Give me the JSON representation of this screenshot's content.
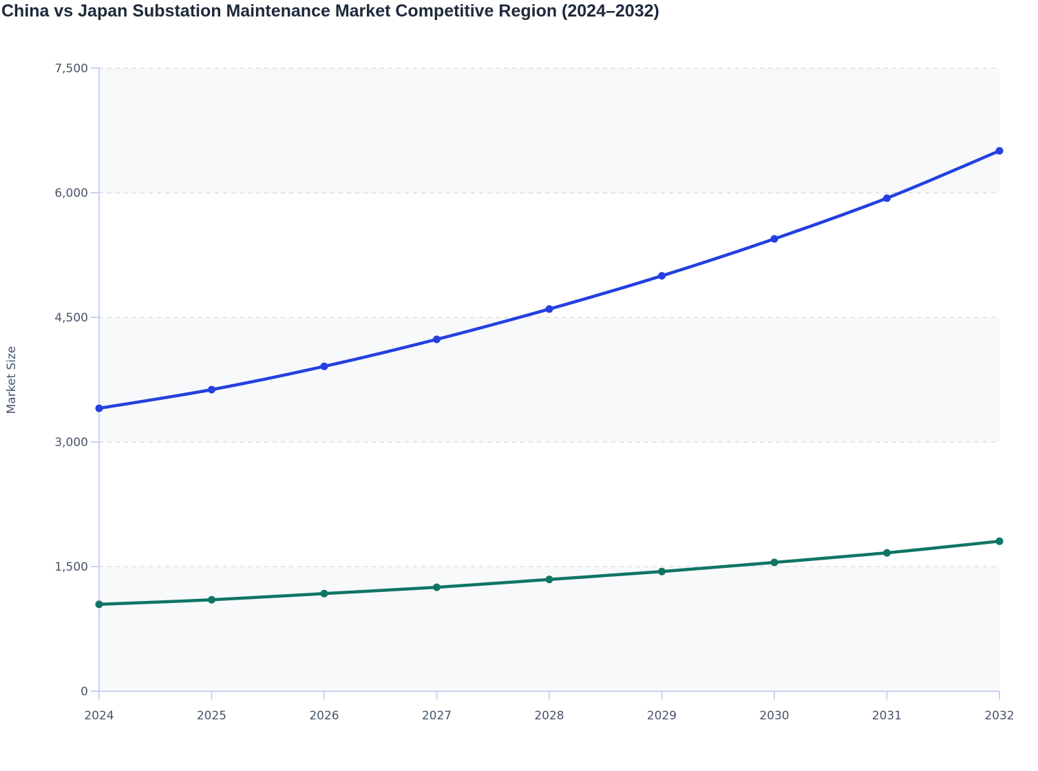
{
  "chart_data": {
    "type": "line",
    "title": "China vs Japan Substation Maintenance Market Competitive Region (2024–2032)",
    "xlabel": "",
    "ylabel": "Market Size",
    "x": [
      "2024",
      "2025",
      "2026",
      "2027",
      "2028",
      "2029",
      "2030",
      "2031",
      "2032"
    ],
    "ylim": [
      0,
      7500
    ],
    "yticks": [
      0,
      1500,
      3000,
      4500,
      6000,
      7500
    ],
    "ytick_labels": [
      "0",
      "1,500",
      "3,000",
      "4,500",
      "6,000",
      "7,500"
    ],
    "grid": true,
    "legend": "none",
    "series": [
      {
        "color": "#2340e0",
        "values": [
          3405,
          3630,
          3910,
          4235,
          4600,
          5000,
          5445,
          5935,
          6505
        ]
      },
      {
        "color": "#0f7566",
        "values": [
          1045,
          1100,
          1175,
          1250,
          1345,
          1440,
          1550,
          1665,
          1805
        ]
      }
    ],
    "band_color": "#f8f9fb",
    "axis_color": "#c7d2f5"
  }
}
